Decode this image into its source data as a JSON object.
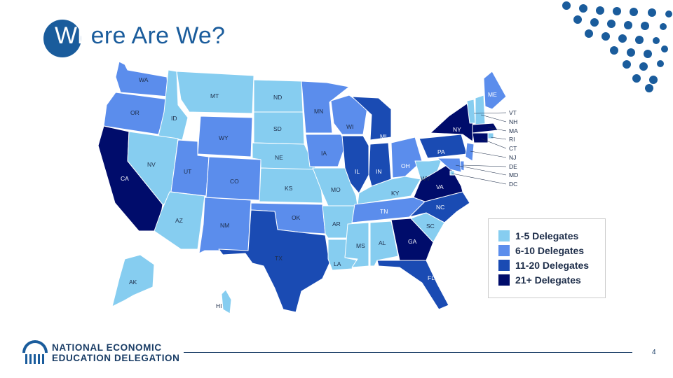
{
  "title": {
    "first": "Wh",
    "rest": "ere Are We?"
  },
  "legend": {
    "items": [
      {
        "label": "1-5 Delegates",
        "color": "#86cdf0"
      },
      {
        "label": "6-10 Delegates",
        "color": "#5b8dec"
      },
      {
        "label": "11-20 Delegates",
        "color": "#1a4bb3"
      },
      {
        "label": "21+ Delegates",
        "color": "#000c6b"
      }
    ]
  },
  "map": {
    "states": {
      "WA": {
        "label": "WA",
        "tier": 2
      },
      "OR": {
        "label": "OR",
        "tier": 2
      },
      "CA": {
        "label": "CA",
        "tier": 4
      },
      "ID": {
        "label": "ID",
        "tier": 1
      },
      "NV": {
        "label": "NV",
        "tier": 1
      },
      "MT": {
        "label": "MT",
        "tier": 1
      },
      "WY": {
        "label": "WY",
        "tier": 2
      },
      "UT": {
        "label": "UT",
        "tier": 2
      },
      "AZ": {
        "label": "AZ",
        "tier": 1
      },
      "CO": {
        "label": "CO",
        "tier": 2
      },
      "NM": {
        "label": "NM",
        "tier": 2
      },
      "ND": {
        "label": "ND",
        "tier": 1
      },
      "SD": {
        "label": "SD",
        "tier": 1
      },
      "NE": {
        "label": "NE",
        "tier": 1
      },
      "KS": {
        "label": "KS",
        "tier": 1
      },
      "OK": {
        "label": "OK",
        "tier": 2
      },
      "TX": {
        "label": "TX",
        "tier": 3
      },
      "MN": {
        "label": "MN",
        "tier": 2
      },
      "IA": {
        "label": "IA",
        "tier": 2
      },
      "MO": {
        "label": "MO",
        "tier": 1
      },
      "AR": {
        "label": "AR",
        "tier": 1
      },
      "LA": {
        "label": "LA",
        "tier": 1
      },
      "WI": {
        "label": "WI",
        "tier": 2
      },
      "IL": {
        "label": "IL",
        "tier": 3
      },
      "MI": {
        "label": "MI",
        "tier": 3
      },
      "IN": {
        "label": "IN",
        "tier": 3
      },
      "OH": {
        "label": "OH",
        "tier": 2
      },
      "KY": {
        "label": "KY",
        "tier": 1
      },
      "TN": {
        "label": "TN",
        "tier": 2
      },
      "MS": {
        "label": "MS",
        "tier": 1
      },
      "AL": {
        "label": "AL",
        "tier": 1
      },
      "GA": {
        "label": "GA",
        "tier": 4
      },
      "FL": {
        "label": "FL",
        "tier": 3
      },
      "SC": {
        "label": "SC",
        "tier": 1
      },
      "NC": {
        "label": "NC",
        "tier": 3
      },
      "VA": {
        "label": "VA",
        "tier": 4
      },
      "WV": {
        "label": "WV",
        "tier": 1
      },
      "PA": {
        "label": "PA",
        "tier": 3
      },
      "NY": {
        "label": "NY",
        "tier": 4
      },
      "ME": {
        "label": "ME",
        "tier": 2
      },
      "AK": {
        "label": "AK",
        "tier": 1
      },
      "HI": {
        "label": "HI",
        "tier": 1
      },
      "VT": {
        "label": "VT",
        "tier": 1
      },
      "NH": {
        "label": "NH",
        "tier": 1
      },
      "MA": {
        "label": "MA",
        "tier": 4
      },
      "RI": {
        "label": "RI",
        "tier": 1
      },
      "CT": {
        "label": "CT",
        "tier": 4
      },
      "NJ": {
        "label": "NJ",
        "tier": 2
      },
      "DE": {
        "label": "DE",
        "tier": 2
      },
      "MD": {
        "label": "MD",
        "tier": 2
      },
      "DC": {
        "label": "DC",
        "tier": 1
      }
    }
  },
  "footer": {
    "org_line1": "NATIONAL ECONOMIC",
    "org_line2": "EDUCATION DELEGATION",
    "page_number": "4"
  }
}
